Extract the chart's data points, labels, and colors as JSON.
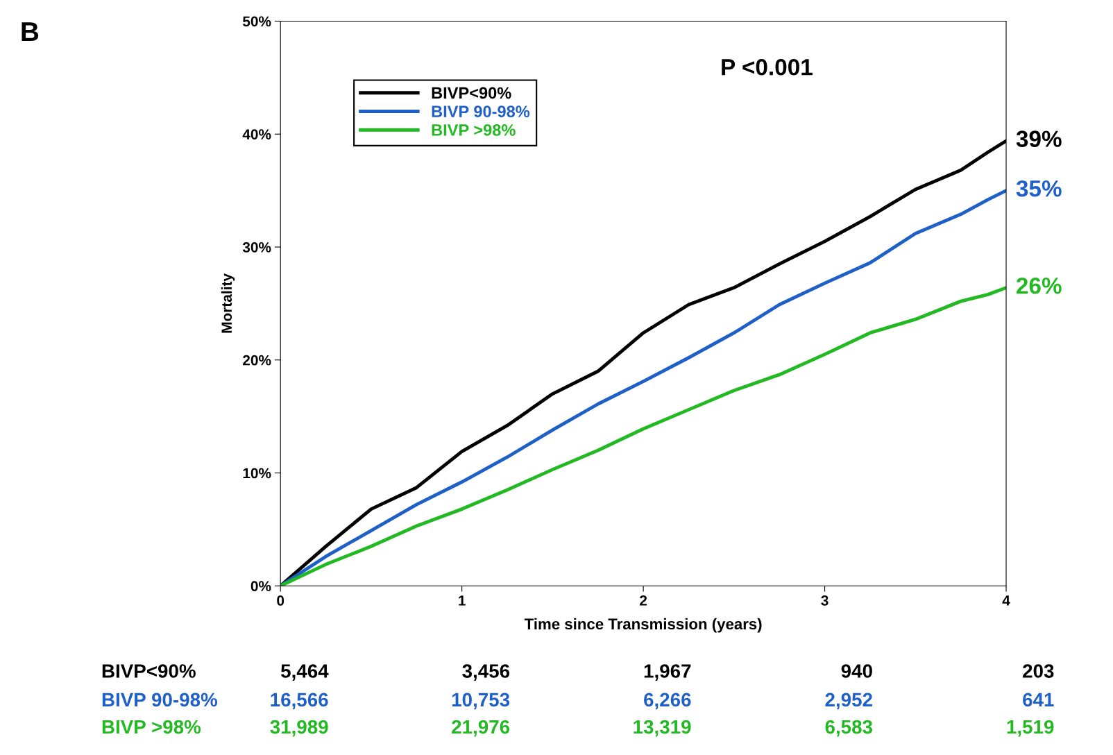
{
  "chart_data": {
    "type": "line",
    "xlabel": "Time since Transmission (years)",
    "ylabel": "Mortality",
    "x": [
      0,
      0.25,
      0.5,
      0.75,
      1,
      1.25,
      1.5,
      1.75,
      2,
      2.25,
      2.5,
      2.75,
      3,
      3.25,
      3.5,
      3.75,
      3.9,
      4
    ],
    "series": [
      {
        "name": "BIVP<90%",
        "color": "#000000",
        "values": [
          0,
          3.5,
          6.8,
          8.7,
          11.9,
          14.2,
          17.0,
          19.0,
          22.4,
          24.9,
          26.4,
          28.5,
          30.5,
          32.7,
          35.1,
          36.8,
          38.4,
          39.4
        ]
      },
      {
        "name": "BIVP 90-98%",
        "color": "#1f5fc8",
        "values": [
          0,
          2.6,
          4.9,
          7.2,
          9.2,
          11.4,
          13.8,
          16.1,
          18.1,
          20.2,
          22.4,
          24.9,
          26.8,
          28.6,
          31.2,
          32.9,
          34.2,
          35.0
        ]
      },
      {
        "name": "BIVP >98%",
        "color": "#22b922",
        "values": [
          0,
          1.9,
          3.5,
          5.3,
          6.8,
          8.5,
          10.3,
          12.0,
          13.9,
          15.6,
          17.3,
          18.7,
          20.5,
          22.4,
          23.6,
          25.2,
          25.8,
          26.4
        ]
      }
    ],
    "xlim": [
      0,
      4
    ],
    "xticks": [
      0,
      1,
      2,
      3,
      4
    ],
    "ylim": [
      0,
      50
    ],
    "yticks": [
      {
        "value": 0,
        "label": "0%"
      },
      {
        "value": 10,
        "label": "10%"
      },
      {
        "value": 20,
        "label": "20%"
      },
      {
        "value": 30,
        "label": "30%"
      },
      {
        "value": 40,
        "label": "40%"
      },
      {
        "value": 50,
        "label": "50%"
      }
    ],
    "legend": "top left",
    "grid": false,
    "marker": "none",
    "line_style": "solid",
    "annotations": [
      "B",
      "P <0.001",
      "39%",
      "35%",
      "26%",
      "BIVP<90%",
      "5,464",
      "3,456",
      "1,967",
      "940",
      "203",
      "BIVP 90-98%",
      "16,566",
      "10,753",
      "6,266",
      "2,952",
      "641",
      "BIVP >98%",
      "31,989",
      "21,976",
      "13,319",
      "6,583",
      "1,519"
    ]
  }
}
